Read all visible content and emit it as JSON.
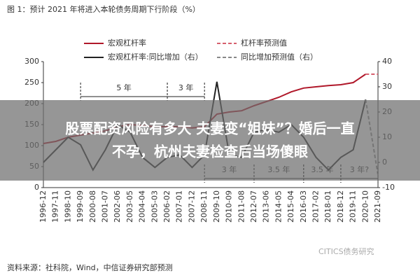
{
  "chart_data": {
    "type": "line",
    "title": "图 1：预计 2021 年将进入本轮债务周期下行阶段（%）",
    "source": "资料来源：社科院，Wind，中信证券研究部预测",
    "watermark": "CITICS债务研究",
    "banner": [
      "股票配资风险有多大 夫妻变“姐妹”？婚后一直",
      "不孕，杭州夫妻检查后当场傻眼"
    ],
    "categories": [
      "1996-12",
      "1997-11",
      "1998-10",
      "1999-09",
      "2000-08",
      "2001-07",
      "2002-06",
      "2003-05",
      "2004-04",
      "2005-03",
      "2006-02",
      "2007-01",
      "2007-12",
      "2008-11",
      "2009-10",
      "2010-09",
      "2011-08",
      "2012-07",
      "2013-06",
      "2014-05",
      "2015-04",
      "2016-03",
      "2017-02",
      "2018-01",
      "2018-12",
      "2019-11",
      "2020-10",
      "2021-09"
    ],
    "series": [
      {
        "name": "宏观杠杆率",
        "color": "#b0182a",
        "dashed": false,
        "values": [
          105,
          110,
          120,
          125,
          130,
          135,
          145,
          150,
          148,
          145,
          145,
          145,
          142,
          145,
          175,
          180,
          183,
          195,
          205,
          215,
          228,
          237,
          240,
          243,
          245,
          250,
          270,
          null
        ]
      },
      {
        "name": "杠杆率预测值",
        "color": "#d6606e",
        "dashed": true,
        "values": [
          null,
          null,
          null,
          null,
          null,
          null,
          null,
          null,
          null,
          null,
          null,
          null,
          null,
          null,
          null,
          null,
          null,
          null,
          null,
          null,
          null,
          null,
          null,
          null,
          null,
          null,
          270,
          270
        ]
      },
      {
        "name": "宏观杠杆率:同比增加（右）",
        "color": "#222222",
        "dashed": false,
        "axis": "y2",
        "values": [
          0,
          5,
          10,
          7,
          -3,
          5,
          15,
          12,
          2,
          -2,
          2,
          3,
          -2,
          3,
          32,
          3,
          2,
          12,
          13,
          12,
          15,
          10,
          2,
          -3,
          2,
          5,
          25,
          null
        ]
      },
      {
        "name": "同比增加预测值（右）",
        "color": "#888888",
        "dashed": true,
        "axis": "y2",
        "values": [
          null,
          null,
          null,
          null,
          null,
          null,
          null,
          null,
          null,
          null,
          null,
          null,
          null,
          null,
          null,
          null,
          null,
          null,
          null,
          null,
          null,
          null,
          null,
          null,
          null,
          null,
          25,
          -5
        ]
      }
    ],
    "annotations": [
      "5 年",
      "3 年",
      "3 年",
      "3.5 年",
      "3.5 年",
      "3 年?"
    ],
    "ylim": [
      0,
      300
    ],
    "yticks": [
      0,
      50,
      100,
      150,
      200,
      250,
      300
    ],
    "y2lim": [
      -10,
      40
    ],
    "y2ticks": [
      -10,
      0,
      10,
      20,
      30,
      40
    ]
  }
}
